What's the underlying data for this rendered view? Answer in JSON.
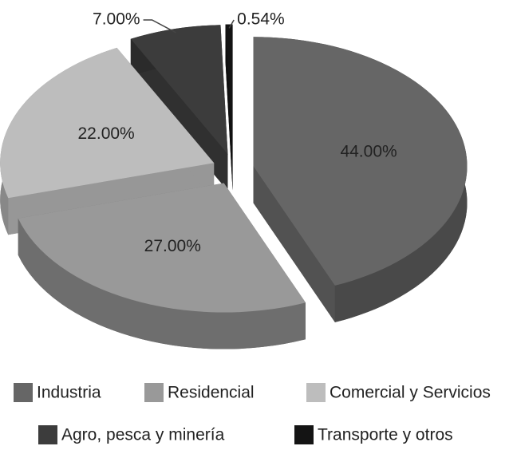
{
  "chart_data": {
    "type": "pie",
    "categories": [
      "Industria",
      "Residencial",
      "Comercial y Servicios",
      "Agro, pesca y minería",
      "Transporte y otros"
    ],
    "values": [
      44,
      27,
      22,
      7,
      0.54
    ],
    "value_labels": [
      "44.00%",
      "27.00%",
      "22.00%",
      "7.00%",
      "0.54%"
    ],
    "colors": [
      "#666666",
      "#999999",
      "#bdbdbd",
      "#3c3c3c",
      "#141414"
    ]
  }
}
